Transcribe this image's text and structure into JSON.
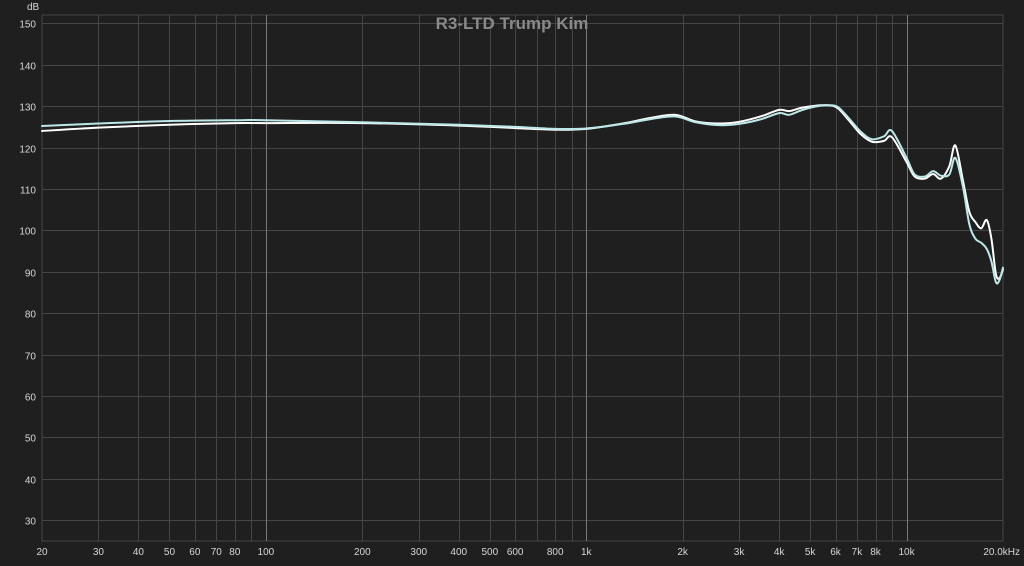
{
  "chart_data": {
    "type": "line",
    "title": "R3-LTD Trump Kim",
    "ylabel": "dB",
    "xlabel": "",
    "x_scale": "log",
    "xlim": [
      20,
      20000
    ],
    "ylim": [
      25,
      152
    ],
    "grid": true,
    "colors": {
      "background": "#1f1f1f",
      "grid_minor": "#454545",
      "grid_major": "#7a7a7a",
      "text": "#d6d6d6",
      "title": "#8a8a8a"
    },
    "x_ticks": [
      {
        "value": 20,
        "label": "20"
      },
      {
        "value": 30,
        "label": "30"
      },
      {
        "value": 40,
        "label": "40"
      },
      {
        "value": 50,
        "label": "50"
      },
      {
        "value": 60,
        "label": "60"
      },
      {
        "value": 70,
        "label": "70"
      },
      {
        "value": 80,
        "label": "80"
      },
      {
        "value": 100,
        "label": "100"
      },
      {
        "value": 200,
        "label": "200"
      },
      {
        "value": 300,
        "label": "300"
      },
      {
        "value": 400,
        "label": "400"
      },
      {
        "value": 500,
        "label": "500"
      },
      {
        "value": 600,
        "label": "600"
      },
      {
        "value": 800,
        "label": "800"
      },
      {
        "value": 1000,
        "label": "1k"
      },
      {
        "value": 2000,
        "label": "2k"
      },
      {
        "value": 3000,
        "label": "3k"
      },
      {
        "value": 4000,
        "label": "4k"
      },
      {
        "value": 5000,
        "label": "5k"
      },
      {
        "value": 6000,
        "label": "6k"
      },
      {
        "value": 7000,
        "label": "7k"
      },
      {
        "value": 8000,
        "label": "8k"
      },
      {
        "value": 10000,
        "label": "10k"
      },
      {
        "value": 20000,
        "label": "20.0kHz"
      }
    ],
    "x_gridlines": [
      30,
      40,
      50,
      60,
      70,
      80,
      90,
      200,
      300,
      400,
      500,
      600,
      700,
      800,
      900,
      2000,
      3000,
      4000,
      5000,
      6000,
      7000,
      8000,
      9000
    ],
    "x_major_gridlines": [
      100,
      1000,
      10000
    ],
    "y_ticks": [
      30,
      40,
      50,
      60,
      70,
      80,
      90,
      100,
      110,
      120,
      130,
      140,
      150
    ],
    "series": [
      {
        "color": "#ffffff",
        "x": [
          20,
          30,
          50,
          80,
          100,
          200,
          400,
          600,
          800,
          1000,
          1300,
          1600,
          1900,
          2200,
          2600,
          3000,
          3500,
          4000,
          4300,
          4700,
          5200,
          5700,
          6100,
          6600,
          7200,
          7800,
          8500,
          9000,
          10000,
          10600,
          11400,
          12100,
          12800,
          13600,
          14200,
          15000,
          15700,
          16400,
          17100,
          17800,
          18400,
          19000,
          19500,
          20000
        ],
        "y": [
          124.0,
          124.8,
          125.5,
          125.9,
          125.9,
          125.9,
          125.3,
          124.7,
          124.3,
          124.5,
          125.8,
          127.2,
          127.9,
          126.3,
          125.8,
          126.2,
          127.5,
          129.1,
          128.8,
          129.6,
          130.1,
          130.2,
          129.5,
          126.6,
          123.2,
          121.4,
          121.6,
          122.5,
          116.5,
          113.0,
          112.5,
          113.6,
          112.5,
          115.5,
          120.5,
          112.0,
          104.5,
          102.0,
          100.5,
          102.5,
          98.0,
          89.5,
          88.5,
          90.5
        ]
      },
      {
        "color": "#bde8e8",
        "x": [
          20,
          30,
          50,
          80,
          100,
          200,
          400,
          600,
          800,
          1000,
          1300,
          1600,
          1900,
          2200,
          2600,
          3000,
          3500,
          4000,
          4300,
          4700,
          5200,
          5700,
          6100,
          6600,
          7200,
          7800,
          8500,
          9000,
          10000,
          10600,
          11400,
          12100,
          12800,
          13600,
          14200,
          15000,
          15700,
          16400,
          17100,
          17800,
          18400,
          19000,
          19500,
          20000
        ],
        "y": [
          125.2,
          125.8,
          126.4,
          126.6,
          126.6,
          126.1,
          125.5,
          125.0,
          124.5,
          124.6,
          125.7,
          126.9,
          127.5,
          126.1,
          125.4,
          125.7,
          126.8,
          128.3,
          127.9,
          129.0,
          129.9,
          130.2,
          129.8,
          127.1,
          123.8,
          122.0,
          122.7,
          124.0,
          117.5,
          113.5,
          113.0,
          114.3,
          113.2,
          113.5,
          117.5,
          110.5,
          101.5,
          98.0,
          97.0,
          95.5,
          92.5,
          87.5,
          88.0,
          91.0
        ]
      }
    ]
  }
}
